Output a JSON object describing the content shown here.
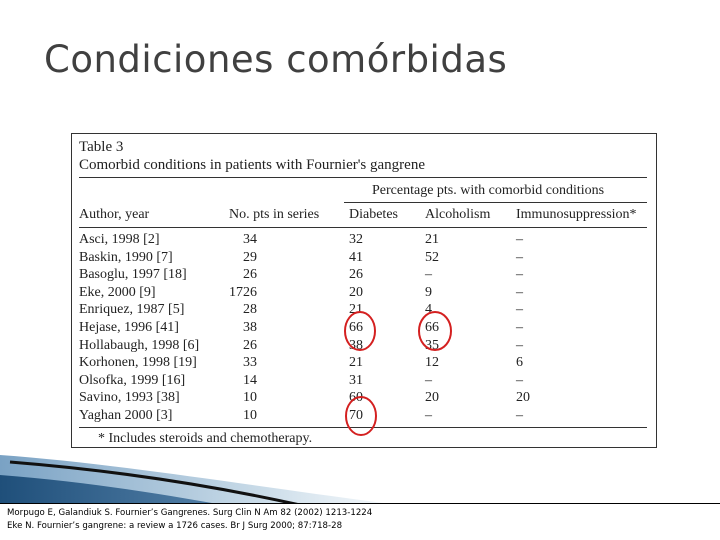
{
  "slide": {
    "title": "Condiciones comórbidas"
  },
  "table": {
    "label": "Table 3",
    "caption": "Comorbid conditions in patients with Fournier's gangrene",
    "group_header": "Percentage pts. with comorbid conditions",
    "columns": [
      "Author, year",
      "No. pts in series",
      "Diabetes",
      "Alcoholism",
      "Immunosuppression*"
    ],
    "rows": [
      [
        "Asci, 1998 [2]",
        "34",
        "32",
        "21",
        "–"
      ],
      [
        "Baskin, 1990 [7]",
        "29",
        "41",
        "52",
        "–"
      ],
      [
        "Basoglu, 1997 [18]",
        "26",
        "26",
        "–",
        "–"
      ],
      [
        "Eke, 2000 [9]",
        "1726",
        "20",
        "9",
        "–"
      ],
      [
        "Enriquez, 1987 [5]",
        "28",
        "21",
        "4",
        "–"
      ],
      [
        "Hejase, 1996 [41]",
        "38",
        "66",
        "66",
        "–"
      ],
      [
        "Hollabaugh, 1998 [6]",
        "26",
        "38",
        "35",
        "–"
      ],
      [
        "Korhonen, 1998 [19]",
        "33",
        "21",
        "12",
        "6"
      ],
      [
        "Olsofka, 1999 [16]",
        "14",
        "31",
        "–",
        "–"
      ],
      [
        "Savino, 1993 [38]",
        "10",
        "60",
        "20",
        "20"
      ],
      [
        "Yaghan 2000 [3]",
        "10",
        "70",
        "–",
        "–"
      ]
    ],
    "footnote": "* Includes steroids and chemotherapy.",
    "highlight_color": "#d42020"
  },
  "references": [
    "Morpugo E, Galandiuk S. Fournier’s Gangrenes. Surg Clin N Am 82 (2002) 1213-1224",
    "Eke N. Fournier’s gangrene: a review a 1726 cases. Br J Surg 2000; 87:718-28"
  ]
}
